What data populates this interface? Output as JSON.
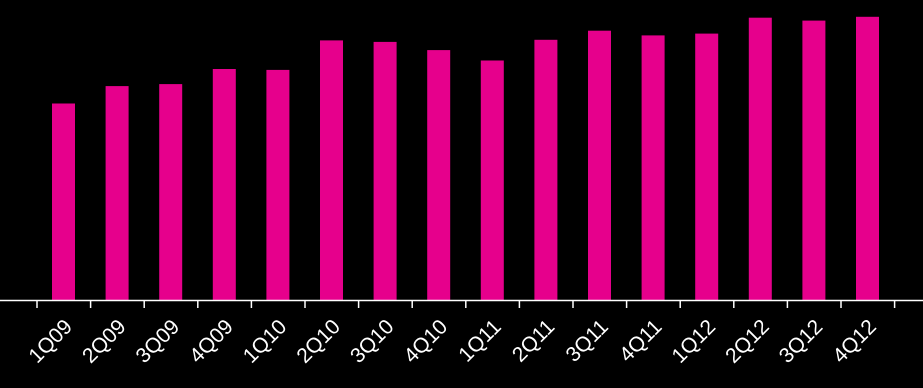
{
  "chart_data": {
    "type": "bar",
    "categories": [
      "1Q09",
      "2Q09",
      "3Q09",
      "4Q09",
      "1Q10",
      "2Q10",
      "3Q10",
      "4Q10",
      "1Q11",
      "2Q11",
      "3Q11",
      "4Q11",
      "1Q12",
      "2Q12",
      "3Q12",
      "4Q12"
    ],
    "series": [
      {
        "values": [
          66.6,
          72.5,
          73.2,
          78.3,
          78.0,
          88.0,
          87.5,
          84.7,
          81.2,
          88.2,
          91.3,
          89.7,
          90.3,
          95.7,
          94.7,
          96.0
        ]
      }
    ],
    "ylim": [
      0,
      100
    ],
    "grid": false,
    "legend": "none",
    "colors": {
      "bar": "#e6008c",
      "axis": "#ffffff",
      "background": "#000000",
      "text": "#ffffff"
    }
  }
}
